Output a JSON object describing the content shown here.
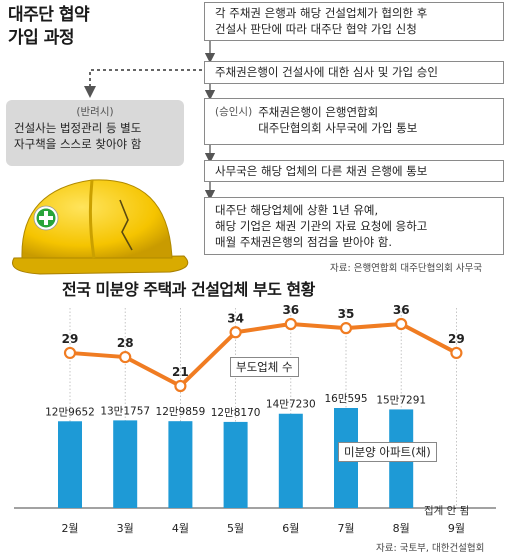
{
  "process": {
    "title_line1": "대주단 협약",
    "title_line2": "가입 과정",
    "steps": [
      [
        "각 주채권 은행과 해당 건설업체가 협의한 후",
        "건설사 판단에 따라 대주단 협약 가입 신청"
      ],
      [
        "주채권은행이 건설사에 대한 심사 및 가입 승인"
      ],
      [
        "주채권은행이 은행연합회",
        "대주단협의회 사무국에 가입 통보"
      ],
      [
        "사무국은 해당 업체의 다른 채권 은행에 통보"
      ],
      [
        "대주단 해당업체에 상환 1년 유예,",
        "해당 기업은 채권 기관의 자료 요청에 응하고",
        "매월 주채권은행의 점검을 받아야 함."
      ]
    ],
    "approved_tag": "(승인시)",
    "rejected_tag": "(반려시)",
    "rejected_text": [
      "건설사는 법정관리 등 별도",
      "자구책을 스스로 찾아야 함"
    ],
    "source": "자료: 은행연합회 대주단협의회 사무국"
  },
  "chart_data": {
    "type": "bar+line",
    "title": "전국 미분양 주택과 건설업체 부도 현황",
    "categories": [
      "2월",
      "3월",
      "4월",
      "5월",
      "6월",
      "7월",
      "8월",
      "9월"
    ],
    "series": [
      {
        "name": "부도업체 수",
        "type": "line",
        "values": [
          29,
          28,
          21,
          34,
          36,
          35,
          36,
          29
        ],
        "labels": [
          "29",
          "28",
          "21",
          "34",
          "36",
          "35",
          "36",
          "29"
        ],
        "color": "#f07c22"
      },
      {
        "name": "미분양 아파트(채)",
        "type": "bar",
        "values": [
          129652,
          131757,
          129859,
          128170,
          147230,
          160595,
          157291,
          null
        ],
        "labels": [
          "12만9652",
          "13만1757",
          "12만9859",
          "12만8170",
          "14만7230",
          "16만595",
          "15만7291",
          ""
        ],
        "color": "#1e9ad6"
      }
    ],
    "note_missing": "집계 안 됨",
    "source": "자료: 국토부, 대한건설협회"
  },
  "colors": {
    "bar": "#1e9ad6",
    "line": "#f07c22",
    "gridline": "#b8b8b8",
    "reject_box": "#d9d9d9",
    "helmet": "#f5c400"
  }
}
